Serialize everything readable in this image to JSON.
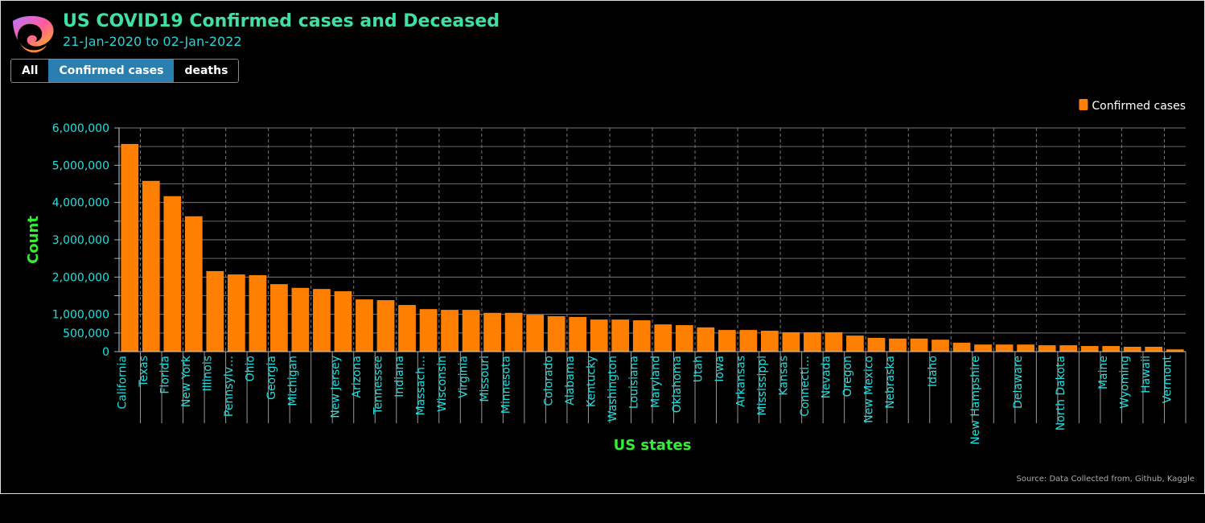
{
  "header": {
    "title": "US COVID19 Confirmed cases and Deceased",
    "subtitle": "21-Jan-2020 to 02-Jan-2022"
  },
  "buttons": [
    "All",
    "Confirmed cases",
    "deaths"
  ],
  "active_button": 1,
  "source": "Source: Data Collected from, Github, Kaggle",
  "chart_data": {
    "type": "bar",
    "xlabel": "US states",
    "ylabel": "Count",
    "categories": [
      "California",
      "Texas",
      "Florida",
      "New York",
      "Illinois",
      "Pennsylv…",
      "Ohio",
      "Georgia",
      "Michigan",
      null,
      "New Jersey",
      "Arizona",
      "Tennessee",
      "Indiana",
      "Massach…",
      "Wisconsin",
      "Virginia",
      "Missouri",
      "Minnesota",
      null,
      "Colorado",
      "Alabama",
      "Kentucky",
      "Washington",
      "Louisiana",
      "Maryland",
      "Oklahoma",
      "Utah",
      "Iowa",
      "Arkansas",
      "Mississippi",
      "Kansas",
      "Connecti…",
      "Nevada",
      "Oregon",
      "New Mexico",
      "Nebraska",
      null,
      "Idaho",
      null,
      "New Hampshire",
      null,
      "Delaware",
      null,
      "North Dakota",
      null,
      "Maine",
      "Wyoming",
      "Hawaii",
      "Vermont"
    ],
    "series": [
      {
        "name": "Confirmed cases",
        "color": "#ff8000",
        "values": [
          5570000,
          4580000,
          4170000,
          3630000,
          2160000,
          2070000,
          2050000,
          1810000,
          1710000,
          1680000,
          1620000,
          1400000,
          1380000,
          1250000,
          1140000,
          1120000,
          1120000,
          1040000,
          1040000,
          990000,
          950000,
          930000,
          860000,
          860000,
          840000,
          730000,
          710000,
          650000,
          580000,
          580000,
          560000,
          520000,
          520000,
          520000,
          430000,
          370000,
          350000,
          350000,
          320000,
          240000,
          190000,
          190000,
          190000,
          170000,
          170000,
          150000,
          150000,
          130000,
          130000,
          60000
        ]
      }
    ],
    "ylim": [
      0,
      6000000
    ],
    "yticks": [
      0,
      {
        "value": 500000,
        "label": "500,000"
      },
      {
        "value": 1000000,
        "label": "1,000,000"
      },
      {
        "value": 2000000,
        "label": "2,000,000"
      },
      {
        "value": 3000000,
        "label": "3,000,000"
      },
      {
        "value": 4000000,
        "label": "4,000,000"
      },
      {
        "value": 5000000,
        "label": "5,000,000"
      },
      {
        "value": 6000000,
        "label": "6,000,000"
      }
    ],
    "yminor": [
      1500000,
      2500000,
      3500000,
      4500000,
      5500000
    ],
    "grid": true,
    "legend": "top-right"
  }
}
